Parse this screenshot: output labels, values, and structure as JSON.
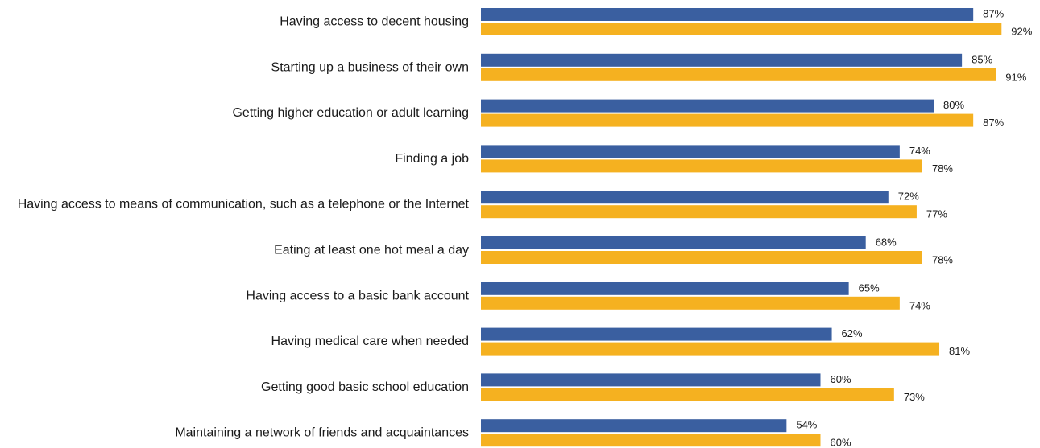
{
  "chart_data": {
    "type": "bar",
    "orientation": "horizontal",
    "categories": [
      "Having access to decent housing",
      "Starting up a business of their own",
      "Getting higher education or adult learning",
      "Finding a job",
      "Having access to means of communication, such as a telephone or the Internet",
      "Eating at least one hot meal a day",
      "Having access to a basic bank account",
      "Having medical care when needed",
      "Getting good basic school education",
      "Maintaining a network of friends and acquaintances"
    ],
    "series": [
      {
        "color": "#3a5fa0",
        "values": [
          87,
          85,
          80,
          74,
          72,
          68,
          65,
          62,
          60,
          54
        ],
        "labels": [
          "87%",
          "85%",
          "80%",
          "74%",
          "72%",
          "68%",
          "65%",
          "62%",
          "60%",
          "54%"
        ]
      },
      {
        "color": "#f5b120",
        "values": [
          92,
          91,
          87,
          78,
          77,
          78,
          74,
          81,
          73,
          60
        ],
        "labels": [
          "92%",
          "91%",
          "87%",
          "78%",
          "77%",
          "78%",
          "74%",
          "81%",
          "73%",
          "60%"
        ]
      }
    ],
    "value_unit": "%",
    "xlim": [
      0,
      100
    ],
    "grid": false,
    "legend": "none",
    "axes_visible": false
  }
}
